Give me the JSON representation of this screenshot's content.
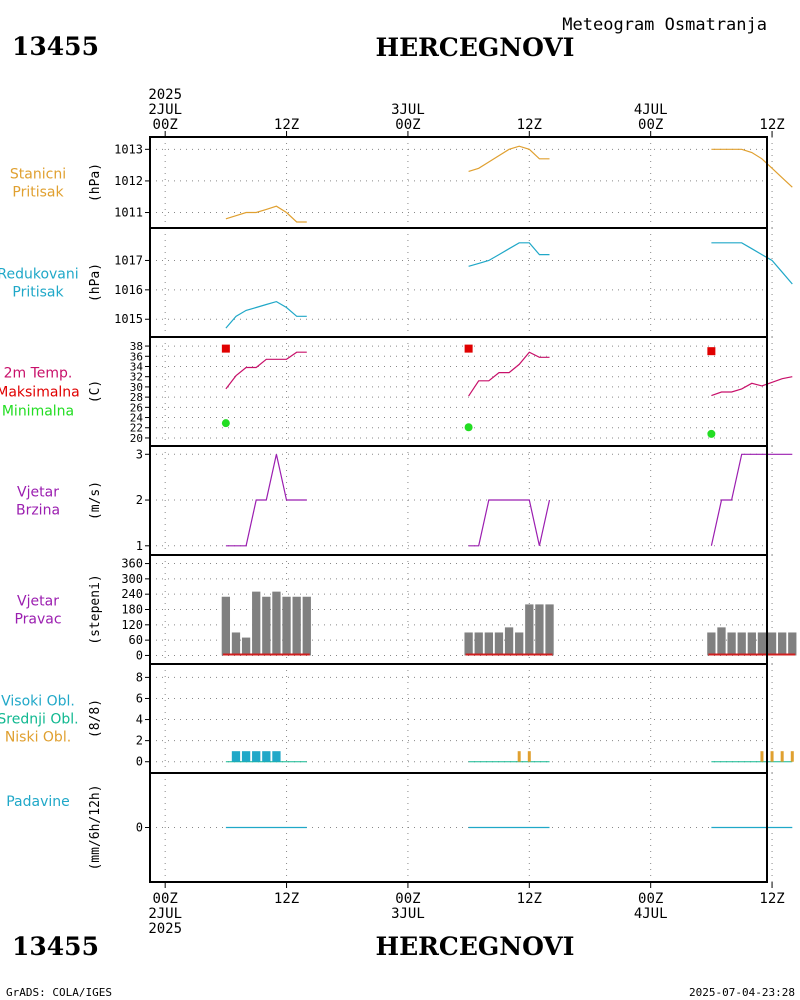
{
  "header": {
    "station_id": "13455",
    "station_name": "HERCEGNOVI",
    "subtitle": "Meteogram Osmatranja"
  },
  "footer": {
    "station_id": "13455",
    "station_name": "HERCEGNOVI",
    "credit": "GrADS: COLA/IGES",
    "timestamp": "2025-07-04-23:28"
  },
  "time_axis": {
    "range_hours": [
      -1.5,
      59.5
    ],
    "top_labels": [
      {
        "h": 0,
        "lines": [
          "2025",
          "2JUL",
          "00Z"
        ]
      },
      {
        "h": 12,
        "lines": [
          "12Z"
        ]
      },
      {
        "h": 24,
        "lines": [
          "3JUL",
          "00Z"
        ]
      },
      {
        "h": 36,
        "lines": [
          "12Z"
        ]
      },
      {
        "h": 48,
        "lines": [
          "4JUL",
          "00Z"
        ]
      },
      {
        "h": 60,
        "lines": [
          "12Z"
        ]
      }
    ],
    "bottom_labels": [
      {
        "h": 0,
        "lines": [
          "00Z",
          "2JUL",
          "2025"
        ]
      },
      {
        "h": 12,
        "lines": [
          "12Z"
        ]
      },
      {
        "h": 24,
        "lines": [
          "00Z",
          "3JUL"
        ]
      },
      {
        "h": 36,
        "lines": [
          "12Z"
        ]
      },
      {
        "h": 48,
        "lines": [
          "00Z",
          "4JUL"
        ]
      },
      {
        "h": 60,
        "lines": [
          "12Z"
        ]
      }
    ]
  },
  "colors": {
    "station_pressure": "#e0a030",
    "reduced_pressure": "#20a8c8",
    "temp_line": "#c8106a",
    "temp_max": "#e00000",
    "temp_min": "#22dd22",
    "wind_speed": "#9b1eb0",
    "wind_bar": "#808080",
    "cloud_high": "#20a8c8",
    "cloud_mid": "#10b890",
    "cloud_low": "#e0a030",
    "precip": "#20a8c8"
  },
  "chart_data": [
    {
      "id": "station_pressure",
      "type": "line",
      "label_lines": [
        "Stanicni",
        "Pritisak"
      ],
      "unit": "(hPa)",
      "yticks": [
        "1011",
        "1012",
        "1013"
      ],
      "ylim": [
        1010.7,
        1013.2
      ],
      "series": [
        {
          "name": "Stanicni Pritisak",
          "segments": [
            [
              [
                6,
                1010.8
              ],
              [
                7,
                1010.9
              ],
              [
                8,
                1011.0
              ],
              [
                9,
                1011.0
              ],
              [
                10,
                1011.1
              ],
              [
                11,
                1011.2
              ],
              [
                12,
                1011.0
              ],
              [
                13,
                1010.7
              ],
              [
                14,
                1010.7
              ]
            ],
            [
              [
                30,
                1012.3
              ],
              [
                31,
                1012.4
              ],
              [
                32,
                1012.6
              ],
              [
                33,
                1012.8
              ],
              [
                34,
                1013.0
              ],
              [
                35,
                1013.1
              ],
              [
                36,
                1013.0
              ],
              [
                37,
                1012.7
              ],
              [
                38,
                1012.7
              ]
            ],
            [
              [
                54,
                1013.0
              ],
              [
                55,
                1013.0
              ],
              [
                56,
                1013.0
              ],
              [
                57,
                1013.0
              ],
              [
                58,
                1012.9
              ],
              [
                59,
                1012.7
              ],
              [
                60,
                1012.4
              ],
              [
                61,
                1012.1
              ],
              [
                62,
                1011.8
              ]
            ]
          ]
        }
      ]
    },
    {
      "id": "reduced_pressure",
      "type": "line",
      "label_lines": [
        "Redukovani",
        "Pritisak"
      ],
      "unit": "(hPa)",
      "yticks": [
        "1015",
        "1016",
        "1017"
      ],
      "ylim": [
        1014.6,
        1017.9
      ],
      "series": [
        {
          "name": "Redukovani Pritisak",
          "segments": [
            [
              [
                6,
                1014.7
              ],
              [
                7,
                1015.1
              ],
              [
                8,
                1015.3
              ],
              [
                9,
                1015.4
              ],
              [
                10,
                1015.5
              ],
              [
                11,
                1015.6
              ],
              [
                12,
                1015.4
              ],
              [
                13,
                1015.1
              ],
              [
                14,
                1015.1
              ]
            ],
            [
              [
                30,
                1016.8
              ],
              [
                31,
                1016.9
              ],
              [
                32,
                1017.0
              ],
              [
                33,
                1017.2
              ],
              [
                34,
                1017.4
              ],
              [
                35,
                1017.6
              ],
              [
                36,
                1017.6
              ],
              [
                37,
                1017.2
              ],
              [
                38,
                1017.2
              ]
            ],
            [
              [
                54,
                1017.6
              ],
              [
                55,
                1017.6
              ],
              [
                56,
                1017.6
              ],
              [
                57,
                1017.6
              ],
              [
                58,
                1017.4
              ],
              [
                59,
                1017.2
              ],
              [
                60,
                1017.0
              ],
              [
                61,
                1016.6
              ],
              [
                62,
                1016.2
              ]
            ]
          ]
        }
      ]
    },
    {
      "id": "temperature",
      "type": "line",
      "label_lines": [
        "2m Temp.",
        "Maksimalna",
        "Minimalna"
      ],
      "unit": "(C)",
      "yticks": [
        "20",
        "22",
        "24",
        "26",
        "28",
        "30",
        "32",
        "34",
        "36",
        "38"
      ],
      "ylim": [
        19.6,
        38.6
      ],
      "series": [
        {
          "name": "2m Temp.",
          "segments": [
            [
              [
                6,
                29.6
              ],
              [
                7,
                32.2
              ],
              [
                8,
                33.8
              ],
              [
                9,
                33.8
              ],
              [
                10,
                35.4
              ],
              [
                11,
                35.4
              ],
              [
                12,
                35.4
              ],
              [
                13,
                36.8
              ],
              [
                14,
                36.8
              ]
            ],
            [
              [
                30,
                28.2
              ],
              [
                31,
                31.2
              ],
              [
                32,
                31.2
              ],
              [
                33,
                32.8
              ],
              [
                34,
                32.8
              ],
              [
                35,
                34.4
              ],
              [
                36,
                36.8
              ],
              [
                37,
                35.8
              ],
              [
                38,
                35.8
              ]
            ],
            [
              [
                54,
                28.3
              ],
              [
                55,
                29.0
              ],
              [
                56,
                29.0
              ],
              [
                57,
                29.6
              ],
              [
                58,
                30.7
              ],
              [
                59,
                30.2
              ],
              [
                60,
                30.9
              ],
              [
                61,
                31.6
              ],
              [
                62,
                32.0
              ]
            ]
          ]
        }
      ],
      "maxima": [
        [
          6,
          37.5
        ],
        [
          30,
          37.5
        ],
        [
          54,
          37.0
        ]
      ],
      "minima": [
        [
          6,
          22.9
        ],
        [
          30,
          22.1
        ],
        [
          54,
          20.8
        ]
      ]
    },
    {
      "id": "wind_speed",
      "type": "line",
      "label_lines": [
        "Vjetar",
        "Brzina"
      ],
      "unit": "(m/s)",
      "yticks": [
        "1",
        "2",
        "3"
      ],
      "ylim": [
        0.93,
        3.05
      ],
      "series": [
        {
          "name": "Vjetar Brzina",
          "segments": [
            [
              [
                6,
                1
              ],
              [
                7,
                1
              ],
              [
                8,
                1
              ],
              [
                9,
                2
              ],
              [
                10,
                2
              ],
              [
                11,
                3
              ],
              [
                12,
                2
              ],
              [
                13,
                2
              ],
              [
                14,
                2
              ]
            ],
            [
              [
                30,
                1
              ],
              [
                31,
                1
              ],
              [
                32,
                2
              ],
              [
                33,
                2
              ],
              [
                34,
                2
              ],
              [
                35,
                2
              ],
              [
                36,
                2
              ],
              [
                37,
                1
              ],
              [
                38,
                2
              ]
            ],
            [
              [
                54,
                1
              ],
              [
                55,
                2
              ],
              [
                56,
                2
              ],
              [
                57,
                3
              ],
              [
                58,
                3
              ],
              [
                59,
                3
              ],
              [
                60,
                3
              ],
              [
                61,
                3
              ],
              [
                62,
                3
              ]
            ]
          ]
        }
      ]
    },
    {
      "id": "wind_direction",
      "type": "bar",
      "label_lines": [
        "Vjetar",
        "Pravac"
      ],
      "unit": "(stepeni)",
      "yticks": [
        "0",
        "60",
        "120",
        "180",
        "240",
        "300",
        "360"
      ],
      "ylim": [
        -10,
        370
      ],
      "hours": [
        6,
        7,
        8,
        9,
        10,
        11,
        12,
        13,
        14,
        30,
        31,
        32,
        33,
        34,
        35,
        36,
        37,
        38,
        54,
        55,
        56,
        57,
        58,
        59,
        60,
        61,
        62
      ],
      "values": [
        230,
        90,
        70,
        250,
        230,
        250,
        230,
        230,
        230,
        90,
        90,
        90,
        90,
        110,
        90,
        200,
        200,
        200,
        90,
        110,
        90,
        90,
        90,
        90,
        90,
        90,
        90
      ]
    },
    {
      "id": "cloud_cover",
      "type": "bar",
      "label_lines": [
        "Visoki Obl.",
        "Srednji Obl.",
        "Niski Obl."
      ],
      "unit": "(8/8)",
      "yticks": [
        "0",
        "2",
        "4",
        "6",
        "8"
      ],
      "ylim": [
        -0.5,
        8.7
      ],
      "series": [
        {
          "name": "Visoki Obl.",
          "hours": [
            7,
            8,
            9,
            10,
            11
          ],
          "values": [
            1,
            1,
            1,
            1,
            1
          ]
        },
        {
          "name": "Niski Obl.",
          "hours": [
            35,
            36,
            59,
            60,
            61,
            62
          ],
          "values": [
            1,
            1,
            1,
            1,
            1,
            1
          ]
        }
      ]
    },
    {
      "id": "precipitation",
      "type": "line",
      "label_lines": [
        "Padavine"
      ],
      "unit": "(mm/6h/12h)",
      "yticks": [
        "0"
      ],
      "ylim": [
        -1,
        1
      ],
      "series": [
        {
          "name": "Padavine",
          "segments": [
            [
              [
                6,
                0
              ],
              [
                14,
                0
              ]
            ],
            [
              [
                30,
                0
              ],
              [
                38,
                0
              ]
            ],
            [
              [
                54,
                0
              ],
              [
                62,
                0
              ]
            ]
          ]
        }
      ]
    }
  ]
}
